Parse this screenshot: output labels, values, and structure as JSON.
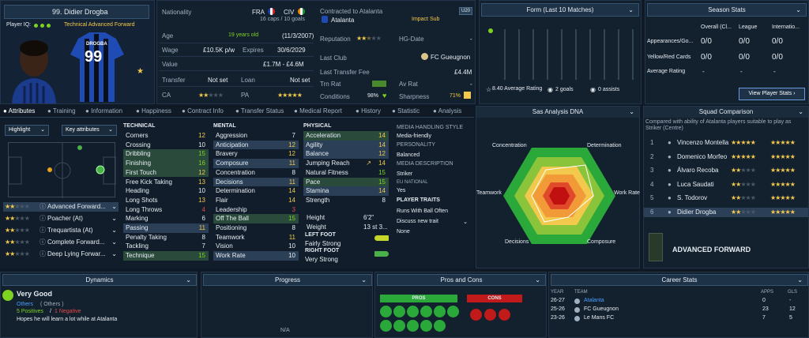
{
  "player": {
    "name": "99. Didier Drogba",
    "iq_label": "Player IQ:",
    "role_label": "Technical Advanced Forward",
    "shirt_name": "DROGBA",
    "shirt_number": "99"
  },
  "profile": {
    "nationality_label": "Nationality",
    "nat1": "FRA",
    "nat2": "CIV",
    "caps": "16 caps / 10 goals",
    "age_label": "Age",
    "age_value": "19 years old",
    "dob": "(11/3/2007)",
    "wage_label": "Wage",
    "wage_value": "£10.5K p/w",
    "expires_label": "Expires",
    "expires_value": "30/6/2029",
    "value_label": "Value",
    "value_value": "£1.7M - £4.6M",
    "transfer_label": "Transfer",
    "transfer_value": "Not set",
    "loan_label": "Loan",
    "loan_value": "Not set",
    "ca_label": "CA",
    "pa_label": "PA",
    "contracted_label": "Contracted to Atalanta",
    "club": "Atalanta",
    "squad_status": "Impact Sub",
    "u_badge": "U20",
    "reputation_label": "Reputation",
    "hg_label": "HG-Date",
    "hg_value": "-",
    "last_club_label": "Last Club",
    "last_club_value": "FC Gueugnon",
    "last_fee_label": "Last Transfer Fee",
    "last_fee_value": "£4.4M",
    "trn_label": "Trn Rat",
    "trn_value": "-",
    "av_label": "Av Rat",
    "av_value": "-",
    "conditions_label": "Conditions",
    "conditions_value": "98%",
    "sharpness_label": "Sharpness",
    "sharpness_value": "71%"
  },
  "form": {
    "title": "Form (Last 10 Matches)",
    "avg": "8.40 Average Rating",
    "goals": "2 goals",
    "assists": "0 assists"
  },
  "season": {
    "title": "Season Stats",
    "cols": [
      "Overall (Cl...",
      "League",
      "Internatio..."
    ],
    "rows": [
      {
        "label": "Appearances/Go...",
        "vals": [
          "0/0",
          "0/0",
          "0/0"
        ]
      },
      {
        "label": "Yellow/Red Cards",
        "vals": [
          "0/0",
          "0/0",
          "0/0"
        ]
      },
      {
        "label": "Average Rating",
        "vals": [
          "-",
          "-",
          "-"
        ]
      }
    ],
    "button": "View Player Stats"
  },
  "tabs": [
    "Attributes",
    "Training",
    "Information",
    "Happiness",
    "Contract Info",
    "Transfer Status",
    "Medical Report",
    "History",
    "Statistic",
    "Analysis"
  ],
  "highlight": {
    "dropdown": "Highlight",
    "key": "Key attributes"
  },
  "roles": [
    {
      "name": "Advanced Forward...",
      "selected": true
    },
    {
      "name": "Poacher (At)"
    },
    {
      "name": "Trequartista (At)"
    },
    {
      "name": "Complete Forward..."
    },
    {
      "name": "Deep Lying Forwar..."
    }
  ],
  "technical": {
    "title": "TECHNICAL",
    "items": [
      {
        "n": "Corners",
        "v": "12"
      },
      {
        "n": "Crossing",
        "v": "10"
      },
      {
        "n": "Dribbling",
        "v": "15",
        "hl": true
      },
      {
        "n": "Finishing",
        "v": "16",
        "hl": true
      },
      {
        "n": "First Touch",
        "v": "12",
        "hl": true
      },
      {
        "n": "Free Kick Taking",
        "v": "13"
      },
      {
        "n": "Heading",
        "v": "10"
      },
      {
        "n": "Long Shots",
        "v": "13"
      },
      {
        "n": "Long Throws",
        "v": "4"
      },
      {
        "n": "Marking",
        "v": "6"
      },
      {
        "n": "Passing",
        "v": "11",
        "hl2": true
      },
      {
        "n": "Penalty Taking",
        "v": "8"
      },
      {
        "n": "Tackling",
        "v": "7"
      },
      {
        "n": "Technique",
        "v": "15",
        "hl": true
      }
    ]
  },
  "mental": {
    "title": "MENTAL",
    "items": [
      {
        "n": "Aggression",
        "v": "7"
      },
      {
        "n": "Anticipation",
        "v": "12",
        "hl2": true
      },
      {
        "n": "Bravery",
        "v": "12"
      },
      {
        "n": "Composure",
        "v": "11",
        "hl2": true
      },
      {
        "n": "Concentration",
        "v": "8"
      },
      {
        "n": "Decisions",
        "v": "11",
        "hl2": true
      },
      {
        "n": "Determination",
        "v": "14"
      },
      {
        "n": "Flair",
        "v": "14"
      },
      {
        "n": "Leadership",
        "v": "3"
      },
      {
        "n": "Off The Ball",
        "v": "15",
        "hl": true
      },
      {
        "n": "Positioning",
        "v": "8"
      },
      {
        "n": "Teamwork",
        "v": "11"
      },
      {
        "n": "Vision",
        "v": "10"
      },
      {
        "n": "Work Rate",
        "v": "10",
        "hl2": true
      }
    ]
  },
  "physical": {
    "title": "PHYSICAL",
    "items": [
      {
        "n": "Acceleration",
        "v": "14",
        "hl": true
      },
      {
        "n": "Agility",
        "v": "14",
        "hl2": true
      },
      {
        "n": "Balance",
        "v": "12",
        "hl2": true
      },
      {
        "n": "Jumping Reach",
        "v": "14"
      },
      {
        "n": "Natural Fitness",
        "v": "15"
      },
      {
        "n": "Pace",
        "v": "15",
        "hl": true
      },
      {
        "n": "Stamina",
        "v": "14",
        "hl2": true
      },
      {
        "n": "Strength",
        "v": "8"
      }
    ],
    "height_label": "Height",
    "height_value": "6'2\"",
    "weight_label": "Weight",
    "weight_value": "13 st 3...",
    "left_foot_label": "LEFT FOOT",
    "left_foot_value": "Fairly Strong",
    "right_foot_label": "RIGHT FOOT",
    "right_foot_value": "Very Strong"
  },
  "media": {
    "style_label": "MEDIA HANDLING STYLE",
    "style_value": "Media-friendly",
    "personality_label": "PERSONALITY",
    "personality_value": "Balanced",
    "desc_label": "MEDIA DESCRIPTION",
    "desc_value": "Striker",
    "eu_label": "EU NATIONAL",
    "eu_value": "Yes",
    "traits_label": "PLAYER TRAITS",
    "trait1": "Runs With Ball Often",
    "discuss": "Discuss new trait",
    "none": "None"
  },
  "dna": {
    "title": "Sas Analysis DNA",
    "labels": [
      "Concentration",
      "Determination",
      "Work Rate",
      "Composure",
      "Decisions",
      "Teamwork"
    ]
  },
  "squad": {
    "title": "Squad Comparison",
    "desc": "Compared with ability of Atalanta players suitable to play as Striker (Centre)",
    "players": [
      {
        "rank": "1",
        "name": "Vincenzo Montella"
      },
      {
        "rank": "2",
        "name": "Domenico Morfeo"
      },
      {
        "rank": "3",
        "name": "Álvaro Recoba"
      },
      {
        "rank": "4",
        "name": "Luca Saudati"
      },
      {
        "rank": "5",
        "name": "S. Todorov"
      },
      {
        "rank": "6",
        "name": "Didier Drogba"
      }
    ],
    "role_title": "ADVANCED FORWARD"
  },
  "dynamics": {
    "title": "Dynamics",
    "rating": "Very Good",
    "others": "Others",
    "others_paren": "( Others )",
    "positives": "5 Positives",
    "negatives": "1 Negative",
    "note": "Hopes he will learn a lot while at Atalanta"
  },
  "progress": {
    "title": "Progress",
    "value": "N/A"
  },
  "pros_cons": {
    "title": "Pros and Cons",
    "pros": "PROS",
    "cons": "CONS"
  },
  "career": {
    "title": "Career Stats",
    "year_h": "YEAR",
    "team_h": "TEAM",
    "apps_h": "APPS",
    "gls_h": "GLS",
    "rows": [
      {
        "year": "26-27",
        "team": "Atalanta",
        "apps": "0",
        "gls": "-"
      },
      {
        "year": "25-26",
        "team": "FC Gueugnon",
        "apps": "23",
        "gls": "12"
      },
      {
        "year": "23-26",
        "team": "Le Mans FC",
        "apps": "7",
        "gls": "5"
      }
    ]
  },
  "colors": {
    "accent": "#7ed321",
    "star": "#f2c94c",
    "panel": "#13202e",
    "bg": "#0f1a26"
  }
}
